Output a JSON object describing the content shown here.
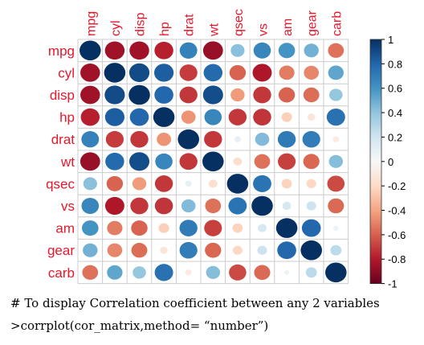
{
  "chart_data": {
    "type": "heatmap",
    "variables": [
      "mpg",
      "cyl",
      "disp",
      "hp",
      "drat",
      "wt",
      "qsec",
      "vs",
      "am",
      "gear",
      "carb"
    ],
    "matrix": [
      [
        1.0,
        -0.85,
        -0.85,
        -0.78,
        0.68,
        -0.87,
        0.42,
        0.66,
        0.6,
        0.48,
        -0.55
      ],
      [
        -0.85,
        1.0,
        0.9,
        0.83,
        -0.7,
        0.78,
        -0.59,
        -0.81,
        -0.52,
        -0.49,
        0.53
      ],
      [
        -0.85,
        0.9,
        1.0,
        0.79,
        -0.71,
        0.89,
        -0.43,
        -0.71,
        -0.59,
        -0.56,
        0.39
      ],
      [
        -0.78,
        0.83,
        0.79,
        1.0,
        -0.45,
        0.66,
        -0.71,
        -0.72,
        -0.24,
        -0.13,
        0.75
      ],
      [
        0.68,
        -0.7,
        -0.71,
        -0.45,
        1.0,
        -0.71,
        0.09,
        0.44,
        0.71,
        0.7,
        -0.09
      ],
      [
        -0.87,
        0.78,
        0.89,
        0.66,
        -0.71,
        1.0,
        -0.17,
        -0.55,
        -0.69,
        -0.58,
        0.43
      ],
      [
        0.42,
        -0.59,
        -0.43,
        -0.71,
        0.09,
        -0.17,
        1.0,
        0.74,
        -0.23,
        -0.21,
        -0.66
      ],
      [
        0.66,
        -0.81,
        -0.71,
        -0.72,
        0.44,
        -0.55,
        0.74,
        1.0,
        0.17,
        0.21,
        -0.57
      ],
      [
        0.6,
        -0.52,
        -0.59,
        -0.24,
        0.71,
        -0.69,
        -0.23,
        0.17,
        1.0,
        0.79,
        0.06
      ],
      [
        0.48,
        -0.49,
        -0.56,
        -0.13,
        0.7,
        -0.58,
        -0.21,
        0.21,
        0.79,
        1.0,
        0.27
      ],
      [
        -0.55,
        0.53,
        0.39,
        0.75,
        -0.09,
        0.43,
        -0.66,
        -0.57,
        0.06,
        0.27,
        1.0
      ]
    ],
    "value_range": [
      -1,
      1
    ],
    "legend": {
      "position": "right",
      "ticks": [
        "1",
        "0.8",
        "0.6",
        "0.4",
        "0.2",
        "0",
        "-0.2",
        "-0.4",
        "-0.6",
        "-0.8",
        "-1"
      ]
    },
    "colors": {
      "positive": "#053061",
      "neutral": "#f7f7f7",
      "negative": "#67001f",
      "label": "#e8172b",
      "grid": "#cccccc"
    }
  },
  "caption": {
    "comment": "# To display Correlation coefficient between any 2 variables",
    "code": ">corrplot(cor_matrix,method= “number”)"
  }
}
